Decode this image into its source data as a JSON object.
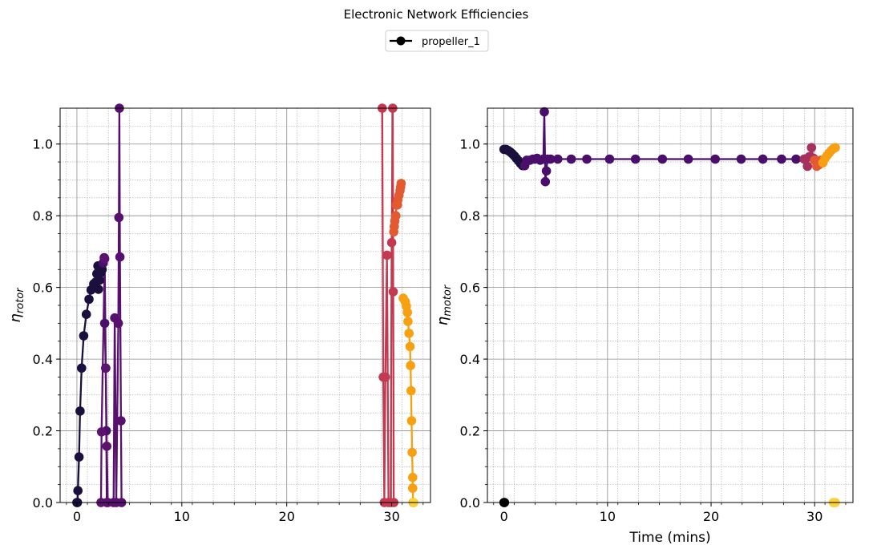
{
  "figure": {
    "title": "Electronic Network Efficiencies",
    "legend": [
      {
        "label": "propeller_1",
        "color": "#000000",
        "marker": "circle-line"
      }
    ]
  },
  "chart_data": [
    {
      "type": "line",
      "ylabel_main": "η",
      "ylabel_sub": "rotor",
      "xlabel": "",
      "xlim": [
        -1.6,
        33.7
      ],
      "ylim": [
        0.0,
        1.1
      ],
      "xticks": [
        "0",
        "10",
        "20",
        "30"
      ],
      "xtick_values": [
        0,
        10,
        20,
        30
      ],
      "yticks": [
        "0.0",
        "0.2",
        "0.4",
        "0.6",
        "0.8",
        "1.0"
      ],
      "ytick_values": [
        0.0,
        0.2,
        0.4,
        0.6,
        0.8,
        1.0
      ],
      "grid": true,
      "marker": "circle",
      "colormap": "inferno",
      "series": [
        {
          "color": "#1a0f3d",
          "points": [
            [
              0.0,
              0.0
            ],
            [
              0.05,
              0.0
            ],
            [
              0.1,
              0.033
            ],
            [
              0.2,
              0.127
            ],
            [
              0.3,
              0.255
            ],
            [
              0.45,
              0.375
            ],
            [
              0.65,
              0.465
            ],
            [
              0.9,
              0.525
            ],
            [
              1.15,
              0.567
            ],
            [
              1.35,
              0.593
            ],
            [
              1.6,
              0.61
            ],
            [
              1.8,
              0.615
            ],
            [
              1.9,
              0.638
            ],
            [
              2.0,
              0.66
            ],
            [
              2.05,
              0.595
            ],
            [
              2.15,
              0.62
            ],
            [
              2.25,
              0.64
            ],
            [
              2.35,
              0.66
            ],
            [
              2.4,
              0.65
            ],
            [
              2.5,
              0.668
            ]
          ]
        },
        {
          "color": "#4a0f6b",
          "points": [
            [
              2.5,
              0.668
            ],
            [
              2.6,
              0.683
            ],
            [
              2.65,
              0.5
            ],
            [
              2.75,
              0.375
            ],
            [
              2.8,
              0.2
            ],
            [
              2.85,
              0.0
            ]
          ]
        },
        {
          "color": "#5c1370",
          "points": [
            [
              2.3,
              0.0
            ],
            [
              2.35,
              0.197
            ],
            [
              2.65,
              0.68
            ],
            [
              2.75,
              0.375
            ],
            [
              2.85,
              0.157
            ],
            [
              2.95,
              0.0
            ]
          ]
        },
        {
          "color": "#57106e",
          "points": [
            [
              3.5,
              0.0
            ],
            [
              3.6,
              0.515
            ],
            [
              3.75,
              0.0
            ],
            [
              3.95,
              0.5
            ],
            [
              4.0,
              0.795
            ],
            [
              4.05,
              1.1
            ],
            [
              4.1,
              0.685
            ],
            [
              4.2,
              0.228
            ],
            [
              4.25,
              0.0
            ]
          ]
        },
        {
          "color": "#c33a50",
          "points": [
            [
              29.1,
              1.1
            ],
            [
              29.2,
              0.35
            ],
            [
              29.3,
              0.0
            ],
            [
              29.4,
              0.35
            ],
            [
              29.55,
              0.69
            ],
            [
              29.7,
              0.0
            ],
            [
              29.9,
              0.0
            ],
            [
              30.0,
              0.725
            ],
            [
              30.1,
              1.1
            ],
            [
              30.15,
              0.588
            ],
            [
              30.2,
              0.0
            ]
          ]
        },
        {
          "color": "#e35a30",
          "points": [
            [
              30.2,
              0.755
            ],
            [
              30.25,
              0.77
            ],
            [
              30.3,
              0.785
            ],
            [
              30.4,
              0.8
            ],
            [
              30.45,
              0.83
            ],
            [
              30.55,
              0.83
            ],
            [
              30.6,
              0.845
            ],
            [
              30.7,
              0.857
            ],
            [
              30.8,
              0.87
            ],
            [
              30.85,
              0.88
            ],
            [
              30.9,
              0.89
            ]
          ]
        },
        {
          "color": "#f7a012",
          "points": [
            [
              31.1,
              0.57
            ],
            [
              31.3,
              0.56
            ],
            [
              31.4,
              0.548
            ],
            [
              31.5,
              0.53
            ],
            [
              31.55,
              0.505
            ],
            [
              31.65,
              0.472
            ],
            [
              31.75,
              0.435
            ],
            [
              31.8,
              0.382
            ],
            [
              31.85,
              0.312
            ],
            [
              31.9,
              0.228
            ],
            [
              31.95,
              0.14
            ],
            [
              32.0,
              0.07
            ],
            [
              32.0,
              0.04
            ],
            [
              32.05,
              0.0
            ]
          ]
        },
        {
          "color": "#fbd03a",
          "points": [
            [
              32.1,
              0.0
            ]
          ]
        }
      ]
    },
    {
      "type": "line",
      "ylabel_main": "η",
      "ylabel_sub": "motor",
      "xlabel": "Time (mins)",
      "xlim": [
        -1.6,
        33.7
      ],
      "ylim": [
        0.0,
        1.1
      ],
      "xticks": [
        "0",
        "10",
        "20",
        "30"
      ],
      "xtick_values": [
        0,
        10,
        20,
        30
      ],
      "yticks": [
        "0.0",
        "0.2",
        "0.4",
        "0.6",
        "0.8",
        "1.0"
      ],
      "ytick_values": [
        0.0,
        0.2,
        0.4,
        0.6,
        0.8,
        1.0
      ],
      "grid": true,
      "marker": "circle",
      "colormap": "inferno",
      "series": [
        {
          "color": "#000000",
          "points": [
            [
              0.0,
              0.0
            ],
            [
              0.05,
              0.0
            ]
          ]
        },
        {
          "color": "#1a0f3d",
          "points": [
            [
              0.0,
              0.985
            ],
            [
              0.2,
              0.985
            ],
            [
              0.4,
              0.982
            ],
            [
              0.6,
              0.978
            ],
            [
              0.8,
              0.973
            ],
            [
              1.0,
              0.967
            ],
            [
              1.2,
              0.96
            ],
            [
              1.4,
              0.953
            ],
            [
              1.6,
              0.946
            ],
            [
              1.8,
              0.94
            ],
            [
              2.0,
              0.94
            ]
          ]
        },
        {
          "color": "#4a0f6b",
          "points": [
            [
              2.0,
              0.94
            ],
            [
              2.2,
              0.955
            ],
            [
              2.5,
              0.955
            ],
            [
              2.8,
              0.958
            ],
            [
              3.0,
              0.958
            ],
            [
              3.2,
              0.96
            ],
            [
              3.5,
              0.955
            ],
            [
              3.8,
              0.958
            ],
            [
              3.9,
              1.09
            ],
            [
              4.0,
              0.895
            ],
            [
              4.1,
              0.925
            ],
            [
              4.2,
              0.958
            ],
            [
              4.5,
              0.958
            ],
            [
              5.2,
              0.958
            ],
            [
              6.5,
              0.958
            ],
            [
              8.0,
              0.958
            ],
            [
              10.2,
              0.958
            ],
            [
              12.7,
              0.958
            ],
            [
              15.3,
              0.958
            ],
            [
              17.8,
              0.958
            ],
            [
              20.4,
              0.958
            ],
            [
              22.9,
              0.958
            ],
            [
              25.0,
              0.958
            ],
            [
              26.8,
              0.958
            ],
            [
              28.2,
              0.958
            ],
            [
              29.0,
              0.958
            ]
          ]
        },
        {
          "color": "#a8305e",
          "points": [
            [
              29.0,
              0.958
            ],
            [
              29.3,
              0.938
            ],
            [
              29.5,
              0.965
            ],
            [
              29.7,
              0.99
            ],
            [
              29.9,
              0.96
            ],
            [
              30.0,
              0.955
            ]
          ]
        },
        {
          "color": "#e35a30",
          "points": [
            [
              30.0,
              0.955
            ],
            [
              30.2,
              0.938
            ],
            [
              30.4,
              0.942
            ],
            [
              30.6,
              0.955
            ],
            [
              30.8,
              0.948
            ]
          ]
        },
        {
          "color": "#f7a012",
          "points": [
            [
              30.8,
              0.948
            ],
            [
              31.0,
              0.96
            ],
            [
              31.2,
              0.968
            ],
            [
              31.4,
              0.975
            ],
            [
              31.6,
              0.982
            ],
            [
              31.8,
              0.987
            ],
            [
              32.0,
              0.99
            ]
          ]
        },
        {
          "color": "#fbd03a",
          "points": [
            [
              31.8,
              0.0
            ],
            [
              32.0,
              0.0
            ]
          ]
        }
      ]
    }
  ]
}
